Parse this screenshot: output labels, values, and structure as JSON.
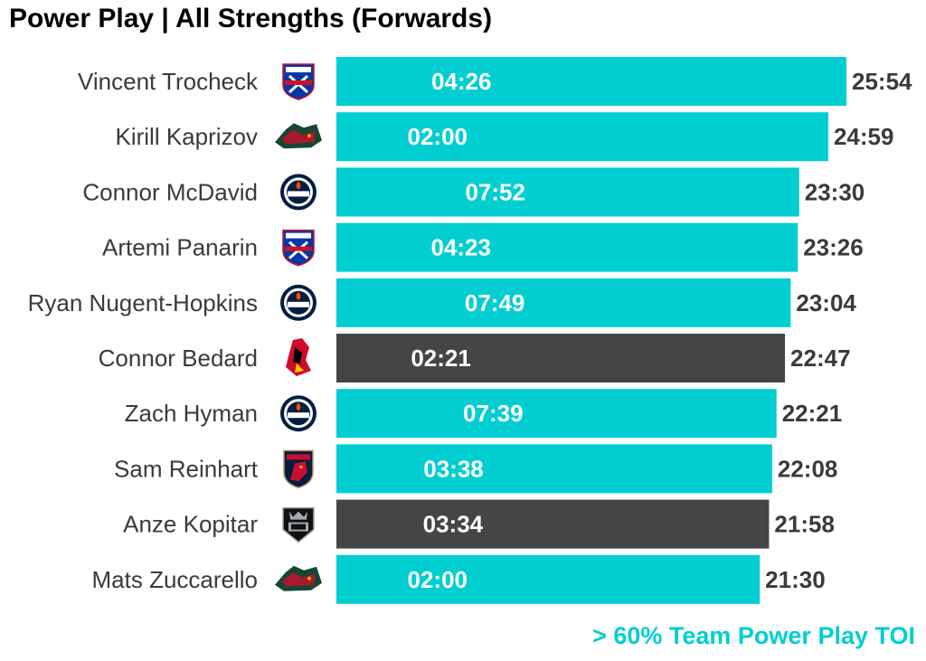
{
  "title": "Power Play | All Strengths (Forwards)",
  "footnote": "> 60% Team Power Play TOI",
  "colors": {
    "highlight": "#00CED1",
    "normal": "#454545",
    "label_text": "#3a3a3a",
    "inner_text": "#ffffff"
  },
  "chart_data": {
    "type": "bar",
    "orientation": "horizontal",
    "value_unit": "minutes (TOI)",
    "categories": [
      "Vincent Trocheck",
      "Kirill Kaprizov",
      "Connor McDavid",
      "Artemi Panarin",
      "Ryan Nugent-Hopkins",
      "Connor Bedard",
      "Zach Hyman",
      "Sam Reinhart",
      "Anze Kopitar",
      "Mats Zuccarello"
    ],
    "all_strengths_toi": [
      "25:54",
      "24:59",
      "23:30",
      "23:26",
      "23:04",
      "22:47",
      "22:21",
      "22:08",
      "21:58",
      "21:30"
    ],
    "all_strengths_minutes": [
      25.9,
      24.98,
      23.5,
      23.43,
      23.07,
      22.78,
      22.35,
      22.13,
      21.97,
      21.5
    ],
    "power_play_toi": [
      "04:26",
      "02:00",
      "07:52",
      "04:23",
      "07:49",
      "02:21",
      "07:39",
      "03:38",
      "03:34",
      "02:00"
    ],
    "power_play_minutes": [
      4.43,
      2.0,
      7.87,
      4.38,
      7.82,
      2.35,
      7.65,
      3.63,
      3.57,
      2.0
    ],
    "above_60pct_team_pp": [
      true,
      true,
      true,
      true,
      true,
      false,
      true,
      true,
      false,
      true
    ],
    "teams": [
      "new-york-rangers-logo",
      "minnesota-wild-logo",
      "edmonton-oilers-logo",
      "new-york-rangers-logo",
      "edmonton-oilers-logo",
      "chicago-blackhawks-logo",
      "edmonton-oilers-logo",
      "florida-panthers-logo",
      "los-angeles-kings-logo",
      "minnesota-wild-logo"
    ],
    "xlim": [
      0,
      25.9
    ],
    "legend": "text note bottom-right"
  }
}
